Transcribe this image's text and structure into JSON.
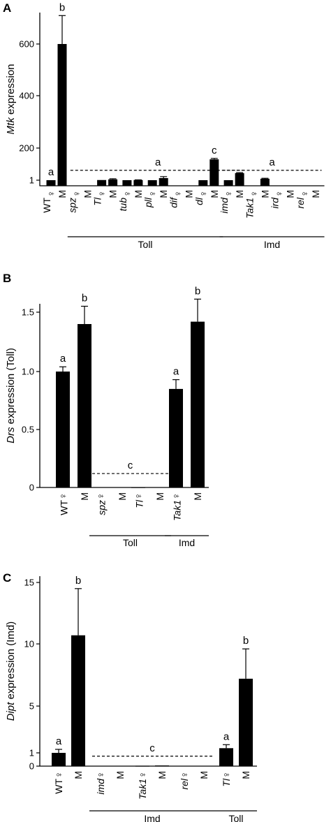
{
  "figure": {
    "panel_letters": [
      "A",
      "B",
      "C"
    ]
  },
  "chart_data": [
    {
      "panel": "A",
      "type": "bar",
      "ylabel_italic": "Mtk",
      "ylabel_rest": " expression",
      "y_ticks": [
        "1",
        "200",
        "400",
        "600"
      ],
      "y_tick_values": [
        1,
        200,
        400,
        600
      ],
      "ylim": [
        0,
        720
      ],
      "grid": false,
      "sex_labels": [
        "♀",
        "M"
      ],
      "genotypes": [
        {
          "name": "WT",
          "italic": false,
          "female": 1,
          "male": 600,
          "female_err": 0,
          "male_err": 110,
          "letters": [
            "a",
            "b"
          ]
        },
        {
          "name": "spz",
          "italic": true,
          "female": 0,
          "male": 0,
          "female_err": 0,
          "male_err": 0,
          "letters": [
            "",
            ""
          ]
        },
        {
          "name": "Tl",
          "italic": true,
          "female": 2,
          "male": 6,
          "female_err": 0,
          "male_err": 4,
          "letters": [
            "",
            ""
          ]
        },
        {
          "name": "tub",
          "italic": true,
          "female": 1,
          "male": 2,
          "female_err": 0,
          "male_err": 1,
          "letters": [
            "",
            ""
          ]
        },
        {
          "name": "pll",
          "italic": true,
          "female": 1,
          "male": 14,
          "female_err": 0,
          "male_err": 9,
          "letters": [
            "",
            ""
          ]
        },
        {
          "name": "dif",
          "italic": true,
          "female": 0,
          "male": 0,
          "female_err": 0,
          "male_err": 0,
          "letters": [
            "",
            ""
          ]
        },
        {
          "name": "dl",
          "italic": true,
          "female": 1,
          "male": 130,
          "female_err": 0,
          "male_err": 6,
          "letters": [
            "",
            "c"
          ]
        },
        {
          "name": "imd",
          "italic": true,
          "female": 1,
          "male": 45,
          "female_err": 0,
          "male_err": 3,
          "letters": [
            "",
            ""
          ]
        },
        {
          "name": "Tak1",
          "italic": true,
          "female": 0,
          "male": 10,
          "female_err": 0,
          "male_err": 3,
          "letters": [
            "",
            ""
          ]
        },
        {
          "name": "ird",
          "italic": true,
          "female": 0,
          "male": 0,
          "female_err": 0,
          "male_err": 0,
          "letters": [
            "",
            ""
          ]
        },
        {
          "name": "rel",
          "italic": true,
          "female": 0,
          "male": 0,
          "female_err": 0,
          "male_err": 0,
          "letters": [
            "",
            ""
          ]
        }
      ],
      "dashed_lines": [
        {
          "from_genotype": 1,
          "to_genotype": 7,
          "y": 62,
          "letter": "a"
        },
        {
          "from_genotype": 7,
          "to_genotype": 10,
          "y": 62,
          "letter": "a"
        }
      ],
      "groups": [
        {
          "label": "Toll",
          "from_genotype": 1,
          "to_genotype": 6
        },
        {
          "label": "Imd",
          "from_genotype": 7,
          "to_genotype": 10
        }
      ]
    },
    {
      "panel": "B",
      "type": "bar",
      "ylabel_italic": "Drs",
      "ylabel_rest": " expression (Toll)",
      "y_ticks": [
        "0",
        "0.5",
        "1.0",
        "1.5"
      ],
      "y_tick_values": [
        0,
        0.5,
        1.0,
        1.5
      ],
      "ylim": [
        0,
        1.7
      ],
      "grid": false,
      "sex_labels": [
        "♀",
        "M"
      ],
      "genotypes": [
        {
          "name": "WT",
          "italic": false,
          "female": 1.0,
          "male": 1.4,
          "female_err": 0.04,
          "male_err": 0.15,
          "letters": [
            "a",
            "b"
          ]
        },
        {
          "name": "spz",
          "italic": true,
          "female": 0,
          "male": 0,
          "female_err": 0,
          "male_err": 0,
          "letters": [
            "",
            ""
          ]
        },
        {
          "name": "Tl",
          "italic": true,
          "female": 0.003,
          "male": 0,
          "female_err": 0,
          "male_err": 0,
          "letters": [
            "",
            ""
          ]
        },
        {
          "name": "Tak1",
          "italic": true,
          "female": 0.85,
          "male": 1.42,
          "female_err": 0.08,
          "male_err": 0.19,
          "letters": [
            "a",
            "b"
          ]
        }
      ],
      "dashed_lines": [
        {
          "from_genotype": 1,
          "to_genotype": 2,
          "y": 0.12,
          "letter": "c"
        }
      ],
      "groups": [
        {
          "label": "Toll",
          "from_genotype": 1,
          "to_genotype": 2
        },
        {
          "label": "Imd",
          "from_genotype": 3,
          "to_genotype": 3
        }
      ]
    },
    {
      "panel": "C",
      "type": "bar",
      "ylabel_italic": "Dipt",
      "ylabel_rest": " expression (Imd)",
      "y_ticks": [
        "0",
        "1",
        "5",
        "10",
        "15"
      ],
      "y_tick_values": [
        0,
        1,
        5,
        10,
        15
      ],
      "ylim": [
        0,
        15.7
      ],
      "grid": false,
      "sex_labels": [
        "♀",
        "M"
      ],
      "genotypes": [
        {
          "name": "WT",
          "italic": false,
          "female": 1.0,
          "male": 10.7,
          "female_err": 0.3,
          "male_err": 3.8,
          "letters": [
            "a",
            "b"
          ]
        },
        {
          "name": "imd",
          "italic": true,
          "female": 0,
          "male": 0.01,
          "female_err": 0,
          "male_err": 0,
          "letters": [
            "",
            ""
          ]
        },
        {
          "name": "Tak1",
          "italic": true,
          "female": 0.03,
          "male": 0.05,
          "female_err": 0,
          "male_err": 0,
          "letters": [
            "",
            ""
          ]
        },
        {
          "name": "rel",
          "italic": true,
          "female": 0,
          "male": 0,
          "female_err": 0,
          "male_err": 0,
          "letters": [
            "",
            ""
          ]
        },
        {
          "name": "Tl",
          "italic": true,
          "female": 1.4,
          "male": 7.2,
          "female_err": 0.3,
          "male_err": 2.4,
          "letters": [
            "a",
            "b"
          ]
        }
      ],
      "dashed_lines": [
        {
          "from_genotype": 1,
          "to_genotype": 3,
          "y": 0.75,
          "letter": "c"
        }
      ],
      "groups": [
        {
          "label": "Imd",
          "from_genotype": 1,
          "to_genotype": 3
        },
        {
          "label": "Toll",
          "from_genotype": 4,
          "to_genotype": 4
        }
      ]
    }
  ]
}
